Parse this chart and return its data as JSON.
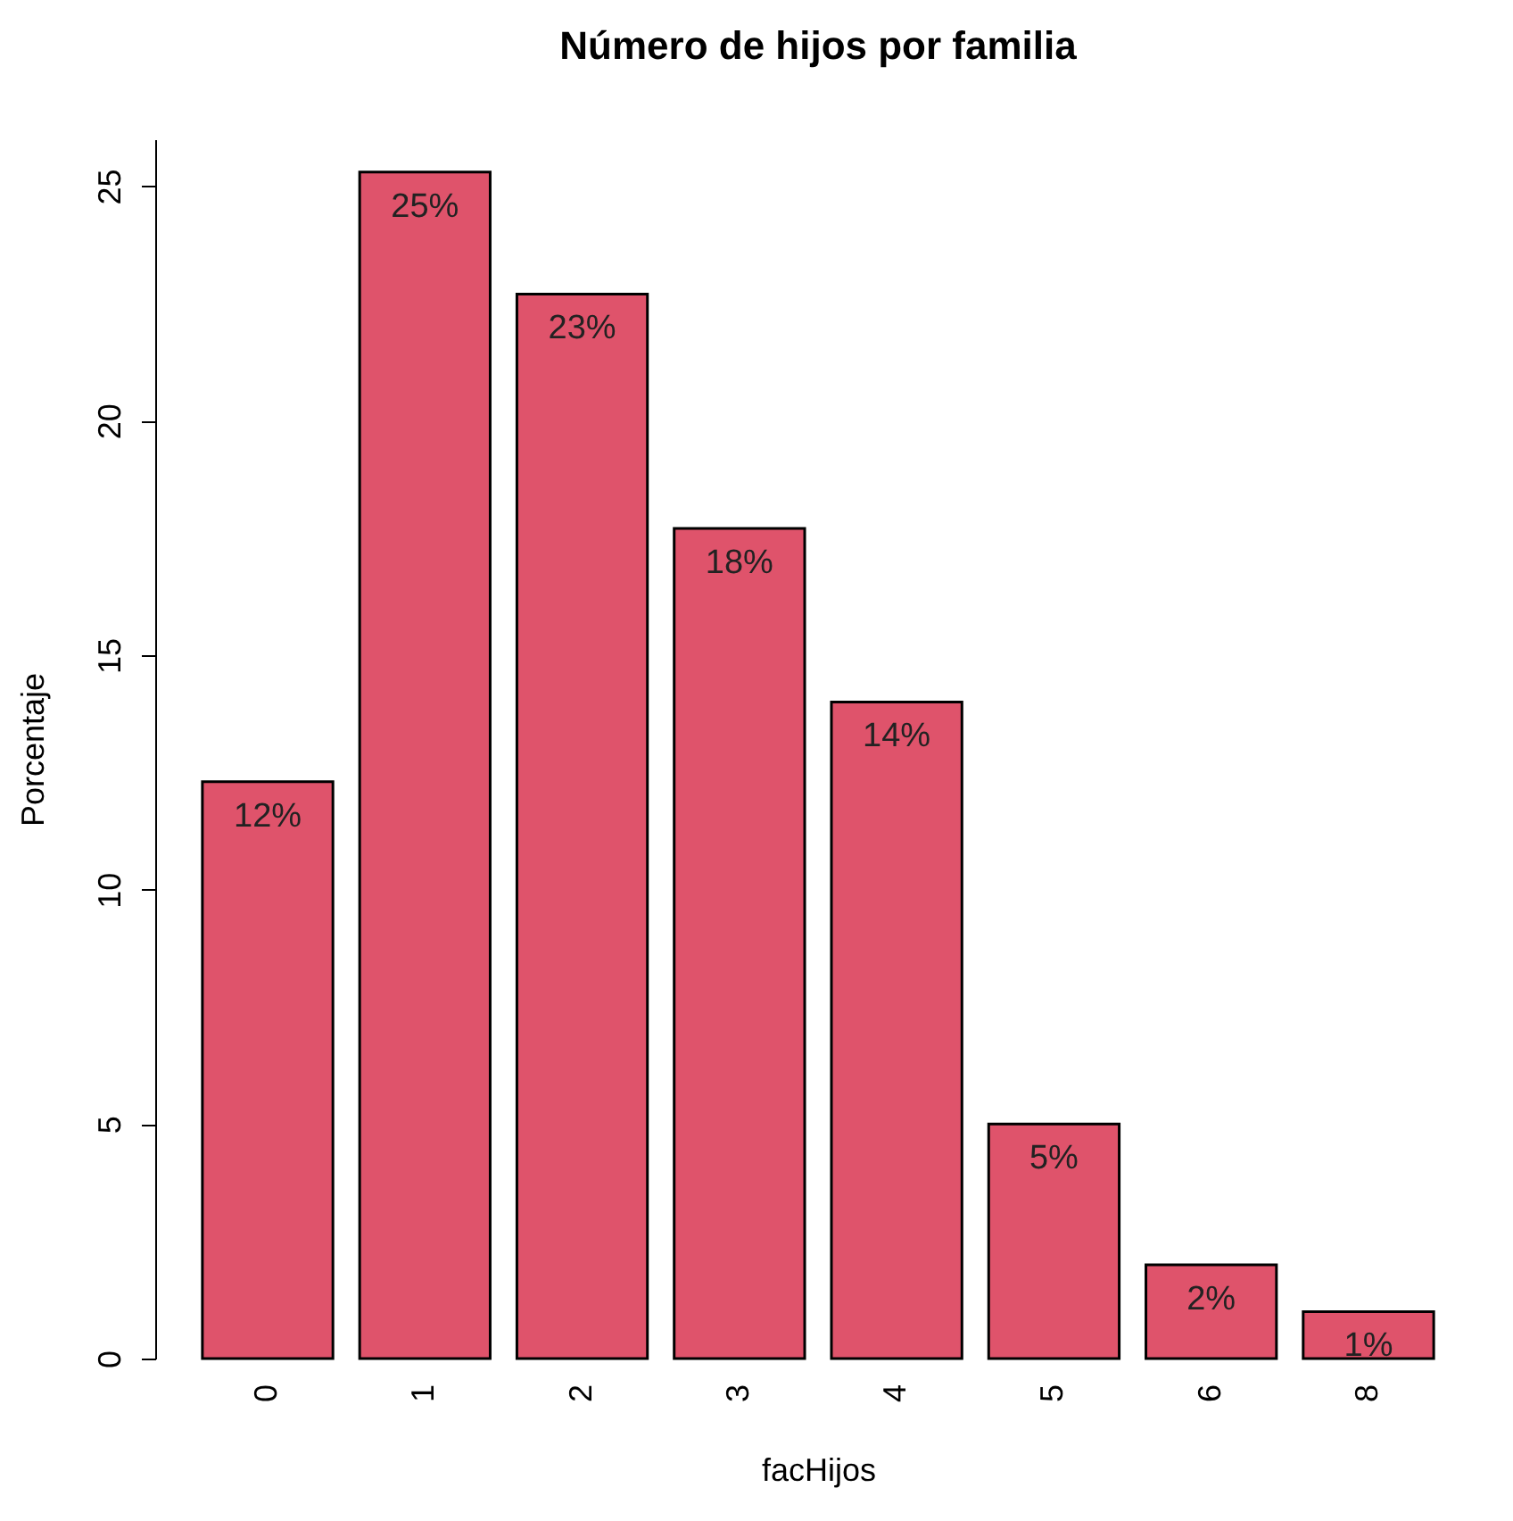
{
  "chart_data": {
    "type": "bar",
    "title": "Número de hijos por familia",
    "xlabel": "facHijos",
    "ylabel": "Porcentaje",
    "categories": [
      "0",
      "1",
      "2",
      "3",
      "4",
      "5",
      "6",
      "8"
    ],
    "values": [
      12.3,
      25.3,
      22.7,
      17.7,
      14.0,
      5.0,
      2.0,
      1.0
    ],
    "value_labels": [
      "12%",
      "25%",
      "23%",
      "18%",
      "14%",
      "5%",
      "2%",
      "1%"
    ],
    "color": "#df536b",
    "ylim": [
      0,
      26
    ],
    "yticks": [
      0,
      5,
      10,
      15,
      20,
      25
    ]
  }
}
